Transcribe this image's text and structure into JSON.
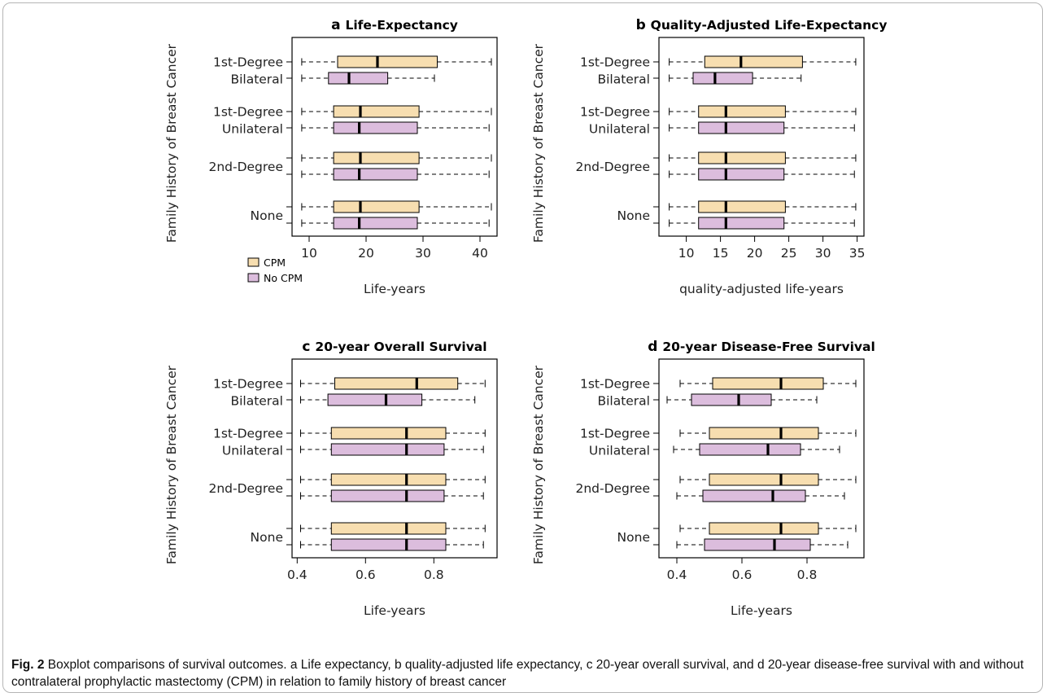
{
  "caption": {
    "label": "Fig. 2",
    "text": "Boxplot comparisons of survival outcomes. a Life expectancy, b quality-adjusted life expectancy, c 20-year overall survival, and d 20-year disease-free survival with and without contralateral prophylactic mastectomy (CPM) in relation to family history of breast cancer"
  },
  "colors": {
    "cpm": "#f7deb0",
    "no_cpm": "#dcbddd",
    "median": "#000000"
  },
  "legend": [
    {
      "name": "CPM",
      "color": "#f7deb0"
    },
    {
      "name": "No CPM",
      "color": "#dcbddd"
    }
  ],
  "group_labels": [
    [
      "1st-Degree",
      "Bilateral"
    ],
    [
      "1st-Degree",
      "Unilateral"
    ],
    [
      "2nd-Degree"
    ],
    [
      "None"
    ]
  ],
  "chart_data": [
    {
      "id": "a",
      "type": "boxplot",
      "letter": "a",
      "title": "Life-Expectancy",
      "ylabel": "Family History of Breast Cancer",
      "xlabel": "Life-years",
      "xlim": [
        7,
        43
      ],
      "xticks": [
        10,
        20,
        30,
        40
      ],
      "xtick_labels": [
        "10",
        "20",
        "30",
        "40"
      ],
      "groups": [
        {
          "cpm": {
            "min": 8.7,
            "q1": 15,
            "median": 22,
            "q3": 32.5,
            "max": 42
          },
          "no_cpm": {
            "min": 8.7,
            "q1": 13.4,
            "median": 17,
            "q3": 23.8,
            "max": 32
          }
        },
        {
          "cpm": {
            "min": 8.7,
            "q1": 14.3,
            "median": 19,
            "q3": 29.3,
            "max": 42
          },
          "no_cpm": {
            "min": 8.7,
            "q1": 14.3,
            "median": 18.8,
            "q3": 29,
            "max": 41.6
          }
        },
        {
          "cpm": {
            "min": 8.7,
            "q1": 14.3,
            "median": 19,
            "q3": 29.3,
            "max": 42
          },
          "no_cpm": {
            "min": 8.7,
            "q1": 14.3,
            "median": 18.8,
            "q3": 29,
            "max": 41.6
          }
        },
        {
          "cpm": {
            "min": 8.7,
            "q1": 14.3,
            "median": 19,
            "q3": 29.3,
            "max": 42
          },
          "no_cpm": {
            "min": 8.7,
            "q1": 14.3,
            "median": 18.8,
            "q3": 29,
            "max": 41.6
          }
        }
      ]
    },
    {
      "id": "b",
      "type": "boxplot",
      "letter": "b",
      "title": "Quality-Adjusted Life-Expectancy",
      "ylabel": "Family History of Breast Cancer",
      "xlabel": "quality-adjusted life-years",
      "xlim": [
        6,
        36
      ],
      "xticks": [
        10,
        15,
        20,
        25,
        30,
        35
      ],
      "xtick_labels": [
        "10",
        "15",
        "20",
        "25",
        "30",
        "35"
      ],
      "groups": [
        {
          "cpm": {
            "min": 7.5,
            "q1": 12.7,
            "median": 18,
            "q3": 27,
            "max": 34.8
          },
          "no_cpm": {
            "min": 7.5,
            "q1": 11,
            "median": 14.2,
            "q3": 19.7,
            "max": 26.8
          }
        },
        {
          "cpm": {
            "min": 7.5,
            "q1": 11.8,
            "median": 15.8,
            "q3": 24.5,
            "max": 34.8
          },
          "no_cpm": {
            "min": 7.5,
            "q1": 11.8,
            "median": 15.8,
            "q3": 24.3,
            "max": 34.6
          }
        },
        {
          "cpm": {
            "min": 7.5,
            "q1": 11.8,
            "median": 15.8,
            "q3": 24.5,
            "max": 34.8
          },
          "no_cpm": {
            "min": 7.5,
            "q1": 11.8,
            "median": 15.8,
            "q3": 24.3,
            "max": 34.6
          }
        },
        {
          "cpm": {
            "min": 7.5,
            "q1": 11.8,
            "median": 15.8,
            "q3": 24.5,
            "max": 34.8
          },
          "no_cpm": {
            "min": 7.5,
            "q1": 11.8,
            "median": 15.8,
            "q3": 24.3,
            "max": 34.6
          }
        }
      ]
    },
    {
      "id": "c",
      "type": "boxplot",
      "letter": "c",
      "title": "20-year Overall Survival",
      "ylabel": "Family History of Breast Cancer",
      "xlabel": "Life-years",
      "xlim": [
        0.385,
        0.985
      ],
      "xticks": [
        0.4,
        0.6,
        0.8
      ],
      "xtick_labels": [
        "0.4",
        "0.6",
        "0.8"
      ],
      "groups": [
        {
          "cpm": {
            "min": 0.41,
            "q1": 0.51,
            "median": 0.75,
            "q3": 0.87,
            "max": 0.95
          },
          "no_cpm": {
            "min": 0.41,
            "q1": 0.49,
            "median": 0.66,
            "q3": 0.765,
            "max": 0.92
          }
        },
        {
          "cpm": {
            "min": 0.41,
            "q1": 0.5,
            "median": 0.72,
            "q3": 0.835,
            "max": 0.95
          },
          "no_cpm": {
            "min": 0.41,
            "q1": 0.5,
            "median": 0.72,
            "q3": 0.83,
            "max": 0.945
          }
        },
        {
          "cpm": {
            "min": 0.41,
            "q1": 0.5,
            "median": 0.72,
            "q3": 0.835,
            "max": 0.95
          },
          "no_cpm": {
            "min": 0.41,
            "q1": 0.5,
            "median": 0.72,
            "q3": 0.83,
            "max": 0.945
          }
        },
        {
          "cpm": {
            "min": 0.41,
            "q1": 0.5,
            "median": 0.72,
            "q3": 0.835,
            "max": 0.95
          },
          "no_cpm": {
            "min": 0.41,
            "q1": 0.5,
            "median": 0.72,
            "q3": 0.835,
            "max": 0.945
          }
        }
      ]
    },
    {
      "id": "d",
      "type": "boxplot",
      "letter": "d",
      "title": "20-year Disease-Free Survival",
      "ylabel": "Family History of Breast Cancer",
      "xlabel": "Life-years",
      "xlim": [
        0.345,
        0.975
      ],
      "xticks": [
        0.4,
        0.6,
        0.8
      ],
      "xtick_labels": [
        "0.4",
        "0.6",
        "0.8"
      ],
      "groups": [
        {
          "cpm": {
            "min": 0.41,
            "q1": 0.51,
            "median": 0.72,
            "q3": 0.85,
            "max": 0.95
          },
          "no_cpm": {
            "min": 0.37,
            "q1": 0.445,
            "median": 0.59,
            "q3": 0.69,
            "max": 0.83
          }
        },
        {
          "cpm": {
            "min": 0.41,
            "q1": 0.5,
            "median": 0.72,
            "q3": 0.835,
            "max": 0.95
          },
          "no_cpm": {
            "min": 0.39,
            "q1": 0.47,
            "median": 0.68,
            "q3": 0.78,
            "max": 0.9
          }
        },
        {
          "cpm": {
            "min": 0.41,
            "q1": 0.5,
            "median": 0.72,
            "q3": 0.835,
            "max": 0.95
          },
          "no_cpm": {
            "min": 0.4,
            "q1": 0.48,
            "median": 0.695,
            "q3": 0.795,
            "max": 0.915
          }
        },
        {
          "cpm": {
            "min": 0.41,
            "q1": 0.5,
            "median": 0.72,
            "q3": 0.835,
            "max": 0.95
          },
          "no_cpm": {
            "min": 0.4,
            "q1": 0.485,
            "median": 0.7,
            "q3": 0.81,
            "max": 0.925
          }
        }
      ]
    }
  ]
}
